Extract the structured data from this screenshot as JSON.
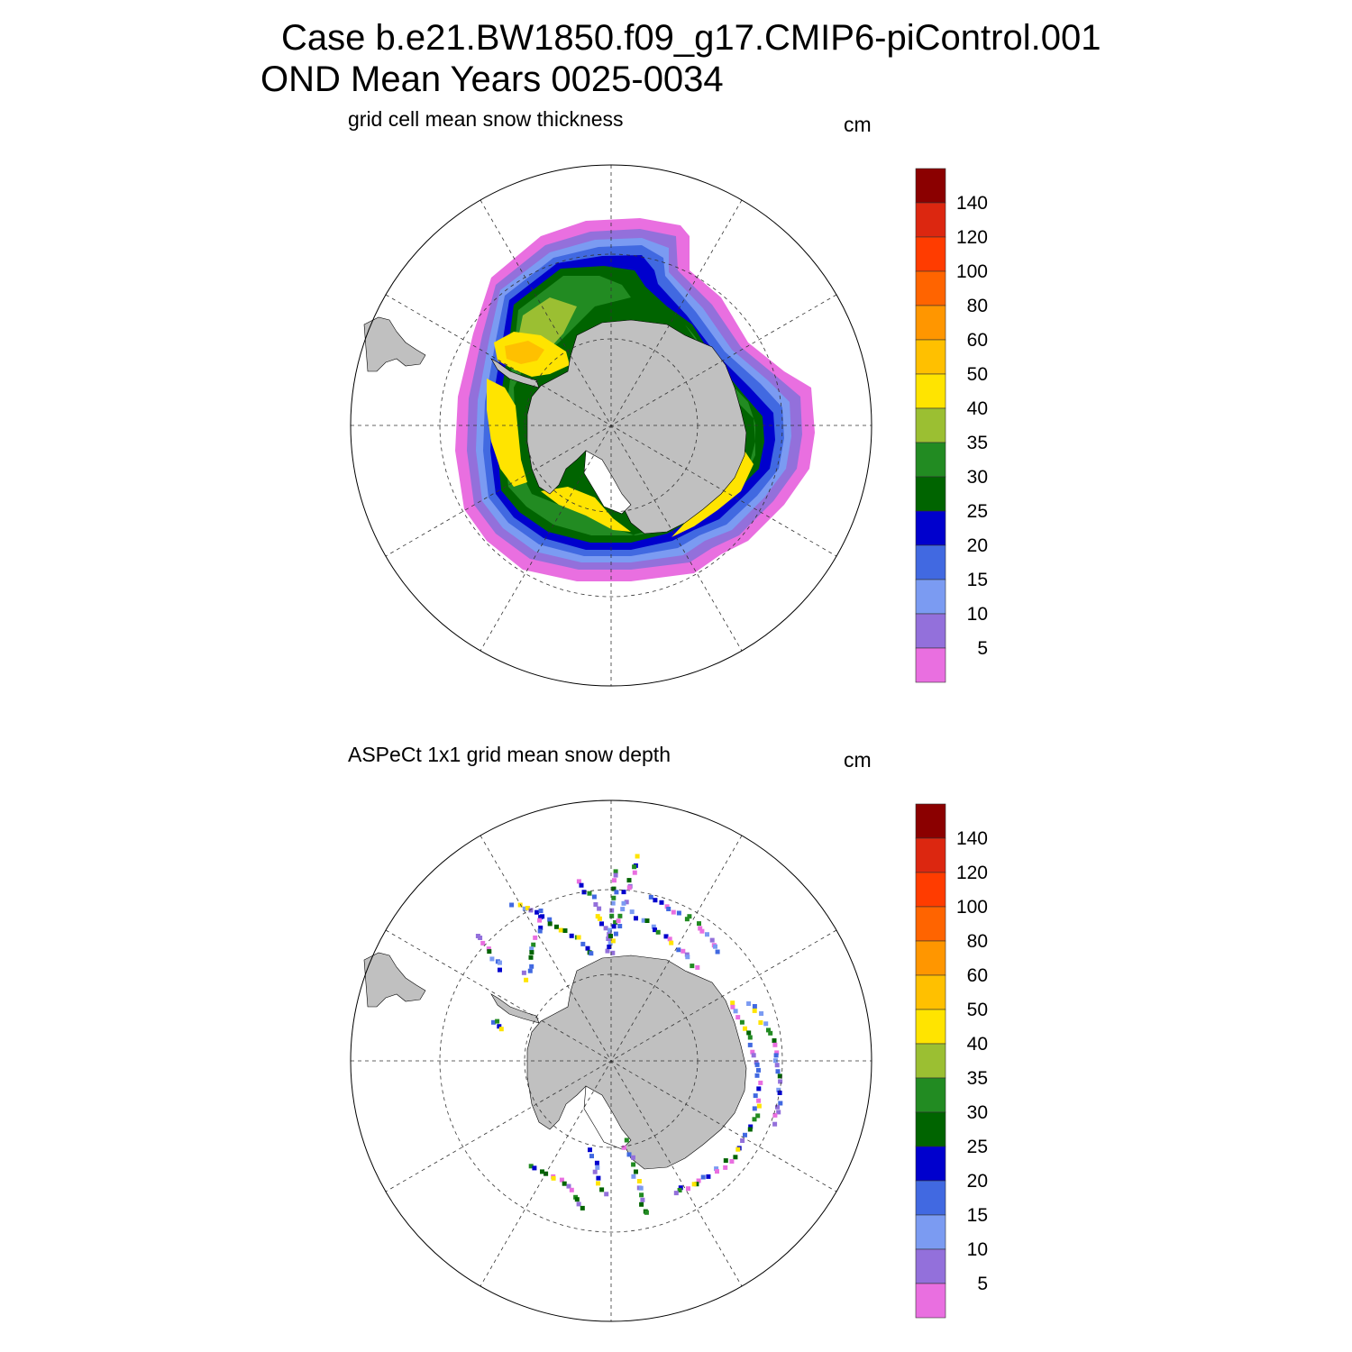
{
  "title": {
    "line1": "Case b.e21.BW1850.f09_g17.CMIP6-piControl.001",
    "line2": "OND Mean   Years 0025-0034"
  },
  "panels": [
    {
      "title": "grid cell mean snow thickness",
      "units": "cm"
    },
    {
      "title": "ASPeCt 1x1 grid mean snow depth",
      "units": "cm"
    }
  ],
  "colorbar": {
    "labels": [
      "140",
      "120",
      "100",
      "80",
      "60",
      "50",
      "40",
      "35",
      "30",
      "25",
      "20",
      "15",
      "10",
      "5"
    ],
    "colors": [
      "#8b0000",
      "#dc2710",
      "#ff3c00",
      "#ff6400",
      "#ff9600",
      "#ffc000",
      "#ffe400",
      "#9bbf32",
      "#228b22",
      "#006400",
      "#0000cd",
      "#4169e1",
      "#7b9bf2",
      "#9370db",
      "#e96fe0"
    ]
  },
  "colors": {
    "land": "#c0c0c0",
    "background": "#ffffff"
  }
}
